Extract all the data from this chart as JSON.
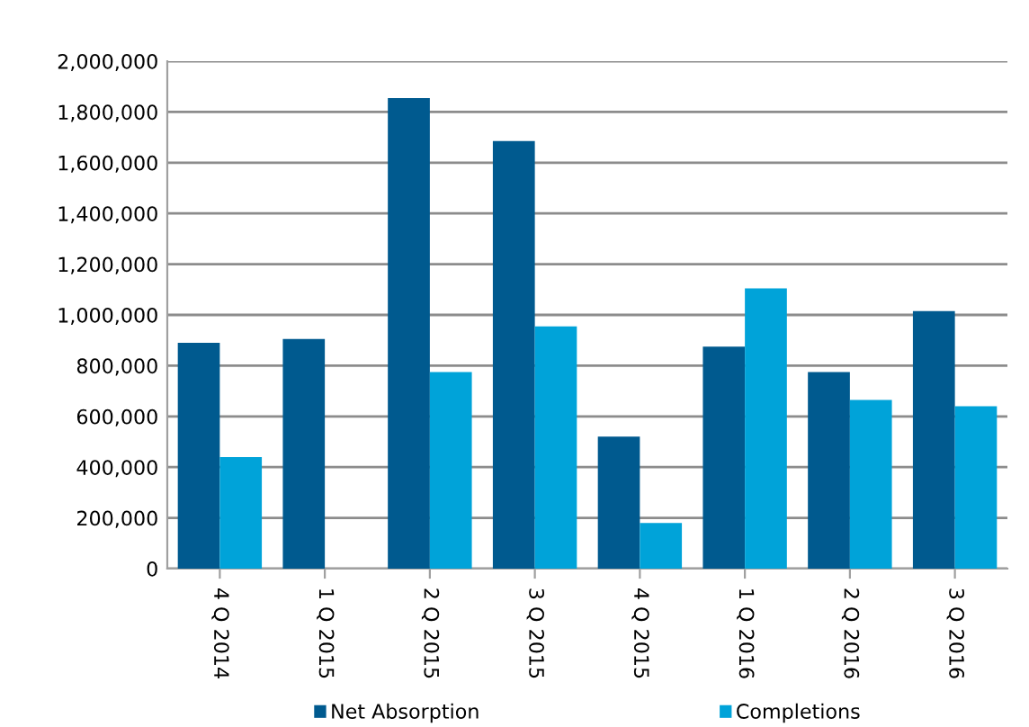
{
  "chart_data": {
    "type": "bar",
    "categories": [
      "4 Q 2014",
      "1 Q 2015",
      "2 Q 2015",
      "3 Q 2015",
      "4 Q 2015",
      "1 Q 2016",
      "2 Q 2016",
      "3 Q 2016"
    ],
    "series": [
      {
        "name": "Net Absorption",
        "color": "#005a8f",
        "values": [
          890000,
          905000,
          1855000,
          1685000,
          520000,
          875000,
          775000,
          1015000
        ]
      },
      {
        "name": "Completions",
        "color": "#00a3d9",
        "values": [
          440000,
          0,
          775000,
          955000,
          180000,
          1105000,
          665000,
          640000
        ]
      }
    ],
    "ylim": [
      0,
      2000000
    ],
    "yticks": [
      {
        "value": 0,
        "label": "0"
      },
      {
        "value": 200000,
        "label": "200,000"
      },
      {
        "value": 400000,
        "label": "400,000"
      },
      {
        "value": 600000,
        "label": "600,000"
      },
      {
        "value": 800000,
        "label": "800,000"
      },
      {
        "value": 1000000,
        "label": "1,000,000"
      },
      {
        "value": 1200000,
        "label": "1,200,000"
      },
      {
        "value": 1400000,
        "label": "1,400,000"
      },
      {
        "value": 1600000,
        "label": "1,600,000"
      },
      {
        "value": 1800000,
        "label": "1,800,000"
      },
      {
        "value": 2000000,
        "label": "2,000,000"
      }
    ],
    "grid": "y",
    "legend": "bottom"
  }
}
